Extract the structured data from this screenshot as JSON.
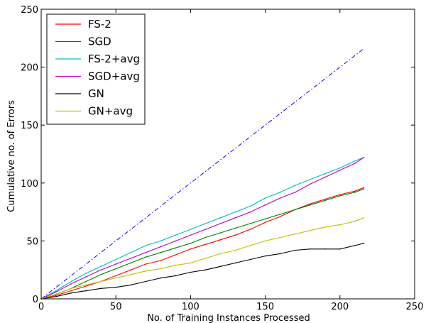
{
  "chart_data": {
    "type": "line",
    "xlabel": "No. of Training Instances Processed",
    "ylabel": "Cumulative no. of Errors",
    "xlim": [
      0,
      250
    ],
    "ylim": [
      0,
      250
    ],
    "xticks": [
      "0",
      "50",
      "100",
      "150",
      "200",
      "250"
    ],
    "yticks": [
      "0",
      "50",
      "100",
      "150",
      "200",
      "250"
    ],
    "grid": false,
    "legend_position": "top-left",
    "reference_line": {
      "style": "dash-dot",
      "color": "#0000ff",
      "x": [
        0,
        216
      ],
      "y": [
        0,
        216
      ]
    },
    "series": [
      {
        "name": "FS-2",
        "color": "#ff0000",
        "x": [
          0,
          10,
          20,
          30,
          40,
          50,
          60,
          70,
          80,
          90,
          100,
          110,
          120,
          130,
          140,
          150,
          160,
          170,
          180,
          190,
          200,
          210,
          216
        ],
        "y": [
          0,
          3,
          7,
          11,
          15,
          20,
          25,
          30,
          33,
          38,
          43,
          47,
          51,
          55,
          60,
          66,
          71,
          77,
          82,
          86,
          90,
          93,
          96
        ]
      },
      {
        "name": "SGD",
        "color": "#008000",
        "x": [
          0,
          10,
          20,
          30,
          40,
          50,
          60,
          70,
          80,
          90,
          100,
          110,
          120,
          130,
          140,
          150,
          160,
          170,
          180,
          190,
          200,
          210,
          216
        ],
        "y": [
          0,
          4,
          9,
          15,
          21,
          26,
          31,
          36,
          40,
          44,
          48,
          53,
          57,
          61,
          65,
          69,
          73,
          77,
          81,
          85,
          89,
          92,
          95
        ]
      },
      {
        "name": "FS-2+avg",
        "color": "#00bfbf",
        "x": [
          0,
          10,
          20,
          30,
          40,
          50,
          60,
          70,
          80,
          90,
          100,
          110,
          120,
          130,
          140,
          150,
          160,
          170,
          180,
          190,
          200,
          210,
          216
        ],
        "y": [
          0,
          7,
          15,
          22,
          28,
          34,
          40,
          46,
          50,
          55,
          60,
          65,
          70,
          75,
          80,
          87,
          92,
          98,
          103,
          108,
          113,
          119,
          122
        ]
      },
      {
        "name": "SGD+avg",
        "color": "#bf00bf",
        "x": [
          0,
          10,
          20,
          30,
          40,
          50,
          60,
          70,
          80,
          90,
          100,
          110,
          120,
          130,
          140,
          150,
          160,
          170,
          180,
          190,
          200,
          210,
          216
        ],
        "y": [
          0,
          6,
          13,
          19,
          25,
          30,
          35,
          40,
          45,
          50,
          55,
          60,
          65,
          70,
          75,
          81,
          87,
          92,
          99,
          105,
          111,
          117,
          122
        ]
      },
      {
        "name": "GN",
        "color": "#000000",
        "x": [
          0,
          10,
          20,
          30,
          40,
          50,
          60,
          70,
          80,
          90,
          100,
          110,
          120,
          130,
          140,
          150,
          160,
          170,
          180,
          190,
          200,
          210,
          216
        ],
        "y": [
          0,
          2,
          5,
          7,
          9,
          10,
          12,
          15,
          18,
          20,
          23,
          25,
          28,
          31,
          34,
          37,
          39,
          42,
          43,
          43,
          43,
          46,
          48
        ]
      },
      {
        "name": "GN+avg",
        "color": "#bfbf00",
        "x": [
          0,
          10,
          20,
          30,
          40,
          50,
          60,
          70,
          80,
          90,
          100,
          110,
          120,
          130,
          140,
          150,
          160,
          170,
          180,
          190,
          200,
          210,
          216
        ],
        "y": [
          0,
          4,
          9,
          12,
          15,
          18,
          21,
          24,
          26,
          29,
          31,
          35,
          39,
          42,
          46,
          50,
          53,
          56,
          59,
          62,
          64,
          67,
          70
        ]
      }
    ]
  }
}
